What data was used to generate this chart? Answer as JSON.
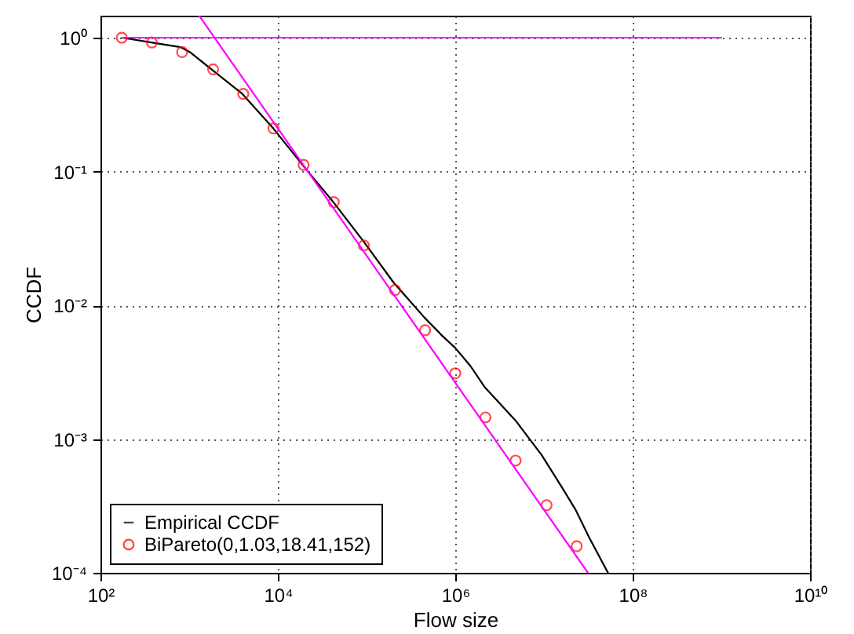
{
  "chart_data": {
    "type": "line",
    "xlabel": "Flow size",
    "ylabel": "CCDF",
    "log": "xy",
    "grid": true,
    "legend": "bottom left",
    "xlim": [
      100,
      10000000000
    ],
    "ylim": [
      0.0001,
      1.46
    ],
    "xticks": [
      {
        "value": 100,
        "label": "10²"
      },
      {
        "value": 10000,
        "label": "10⁴"
      },
      {
        "value": 1000000,
        "label": "10⁶"
      },
      {
        "value": 100000000,
        "label": "10⁸"
      },
      {
        "value": 10000000000,
        "label": "10¹⁰"
      }
    ],
    "yticks": [
      {
        "value": 0.0001,
        "label": "10⁻⁴"
      },
      {
        "value": 0.001,
        "label": "10⁻³"
      },
      {
        "value": 0.01,
        "label": "10⁻²"
      },
      {
        "value": 0.1,
        "label": "10⁻¹"
      },
      {
        "value": 1,
        "label": "10⁰"
      }
    ],
    "series": [
      {
        "name": "Empirical CCDF",
        "type": "line",
        "color": "#000000",
        "x": [
          175,
          375,
          802,
          1021,
          1786,
          3981,
          8872,
          18970,
          42270,
          94190,
          201400,
          448700,
          696600,
          1000000,
          1490000,
          2140000,
          4760000,
          9420000,
          15800000,
          22800000,
          32600000,
          52700000
        ],
        "values": [
          1,
          0.92,
          0.85,
          0.78,
          0.58,
          0.38,
          0.21,
          0.112,
          0.059,
          0.0295,
          0.0148,
          0.0081,
          0.006,
          0.0048,
          0.0035,
          0.00245,
          0.00138,
          0.00076,
          0.00044,
          0.000295,
          0.000182,
          0.0001
        ]
      },
      {
        "name": "BiPareto(0,1.03,18.41,152)",
        "type": "scatter",
        "marker": "circle",
        "color": "#ff0000",
        "x": [
          174,
          380,
          832,
          1862,
          4074,
          8913,
          19500,
          42700,
          93300,
          209000,
          457000,
          1000000,
          2190000,
          4790000,
          10700000,
          23400000
        ],
        "values": [
          1,
          0.92,
          0.78,
          0.58,
          0.38,
          0.21,
          0.112,
          0.059,
          0.028,
          0.013,
          0.0065,
          0.0031,
          0.00145,
          0.00069,
          0.00032,
          0.000158
        ]
      },
      {
        "type": "line",
        "color": "#ff00ff",
        "x": [
          175,
          1000000000
        ],
        "values": [
          1,
          1
        ]
      },
      {
        "type": "line",
        "color": "#ff00ff",
        "x": [
          1297,
          31300000
        ],
        "values": [
          1.46,
          0.0001
        ]
      }
    ]
  }
}
